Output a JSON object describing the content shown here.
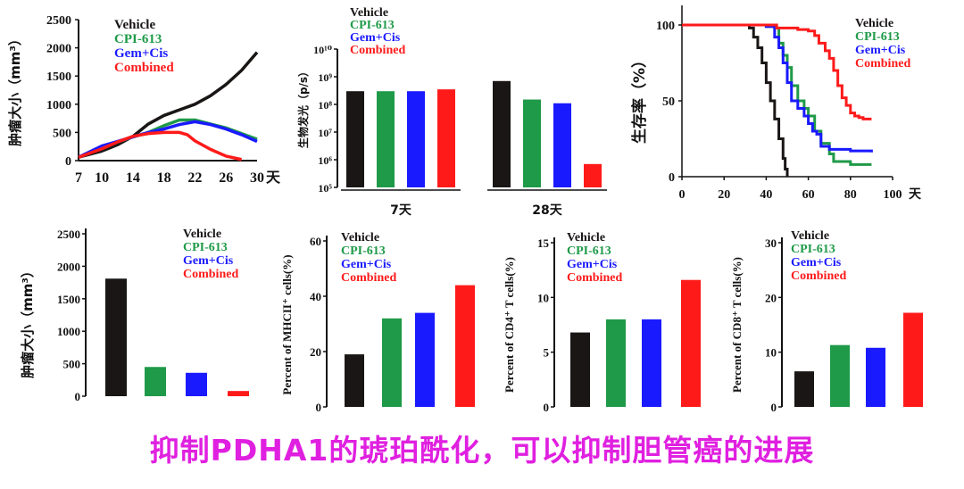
{
  "caption": "抑制PDHA1的琥珀酰化，可以抑制胆管癌的进展",
  "colors": {
    "Vehicle": "#1a1616",
    "CPI-613": "#1f9a48",
    "Gem+Cis": "#1a1aff",
    "Combined": "#ff1a1a"
  },
  "chart_data": [
    {
      "type": "line",
      "ylabel": "肿瘤大小（mm³）",
      "x_unit": "天",
      "xticks": [
        "7",
        "10",
        "14",
        "18",
        "22",
        "26",
        "30"
      ],
      "yticks": [
        "0",
        "500",
        "1000",
        "1500",
        "2000",
        "2500"
      ],
      "ylim": [
        0,
        2500
      ],
      "legend": [
        "Vehicle",
        "CPI-613",
        "Gem+Cis",
        "Combined"
      ],
      "series": [
        {
          "name": "Vehicle",
          "x": [
            7,
            10,
            12,
            14,
            16,
            18,
            20,
            22,
            24,
            26,
            28,
            30
          ],
          "y": [
            60,
            170,
            280,
            430,
            650,
            800,
            900,
            1000,
            1150,
            1350,
            1600,
            1920
          ]
        },
        {
          "name": "CPI-613",
          "x": [
            7,
            10,
            12,
            14,
            16,
            18,
            20,
            22,
            24,
            26,
            28,
            30
          ],
          "y": [
            60,
            230,
            330,
            420,
            500,
            620,
            720,
            720,
            650,
            580,
            480,
            380
          ]
        },
        {
          "name": "Gem+Cis",
          "x": [
            7,
            10,
            12,
            14,
            16,
            18,
            20,
            22,
            24,
            26,
            28,
            30
          ],
          "y": [
            60,
            260,
            340,
            420,
            500,
            560,
            640,
            690,
            640,
            560,
            460,
            340
          ]
        },
        {
          "name": "Combined",
          "x": [
            7,
            10,
            12,
            14,
            16,
            18,
            20,
            21,
            22,
            24,
            26,
            28
          ],
          "y": [
            60,
            210,
            330,
            430,
            480,
            500,
            500,
            460,
            350,
            200,
            80,
            20
          ]
        }
      ]
    },
    {
      "type": "bar",
      "ylabel": "生物发光（p/s）",
      "yscale": "log",
      "ylim": [
        100000,
        10000000000
      ],
      "yticks": [
        "10⁵",
        "10⁶",
        "10⁷",
        "10⁸",
        "10⁹",
        "10¹⁰"
      ],
      "groups": [
        "7天",
        "28天"
      ],
      "legend": [
        "Vehicle",
        "CPI-613",
        "Gem+Cis",
        "Combined"
      ],
      "series": [
        {
          "name": "Vehicle",
          "values": [
            300000000,
            700000000
          ]
        },
        {
          "name": "CPI-613",
          "values": [
            300000000,
            150000000
          ]
        },
        {
          "name": "Gem+Cis",
          "values": [
            300000000,
            110000000
          ]
        },
        {
          "name": "Combined",
          "values": [
            350000000,
            700000
          ]
        }
      ]
    },
    {
      "type": "line",
      "ylabel": "生存率（%）",
      "x_unit": "天",
      "xticks": [
        "0",
        "20",
        "40",
        "60",
        "80",
        "100"
      ],
      "yticks": [
        "0",
        "50",
        "100"
      ],
      "xlim": [
        0,
        100
      ],
      "ylim": [
        0,
        100
      ],
      "legend": [
        "Vehicle",
        "CPI-613",
        "Gem+Cis",
        "Combined"
      ],
      "series": [
        {
          "name": "Vehicle",
          "x": [
            0,
            25,
            32,
            34,
            36,
            38,
            40,
            42,
            44,
            46,
            48,
            49,
            50
          ],
          "y": [
            100,
            100,
            98,
            92,
            85,
            75,
            62,
            50,
            38,
            25,
            12,
            5,
            0
          ]
        },
        {
          "name": "CPI-613",
          "x": [
            0,
            25,
            40,
            44,
            46,
            48,
            50,
            52,
            55,
            58,
            60,
            63,
            66,
            70,
            72,
            80,
            90
          ],
          "y": [
            100,
            100,
            99,
            98,
            88,
            80,
            72,
            60,
            50,
            45,
            40,
            30,
            22,
            15,
            10,
            8,
            8
          ]
        },
        {
          "name": "Gem+Cis",
          "x": [
            0,
            25,
            40,
            44,
            46,
            48,
            50,
            52,
            55,
            58,
            60,
            62,
            64,
            66,
            70,
            80,
            90
          ],
          "y": [
            100,
            100,
            99,
            92,
            85,
            75,
            62,
            50,
            45,
            40,
            35,
            30,
            28,
            20,
            18,
            17,
            16
          ]
        },
        {
          "name": "Combined",
          "x": [
            0,
            25,
            45,
            55,
            60,
            63,
            65,
            68,
            70,
            72,
            74,
            76,
            78,
            80,
            82,
            84,
            86,
            90
          ],
          "y": [
            100,
            100,
            98,
            97,
            96,
            93,
            88,
            83,
            78,
            70,
            60,
            52,
            47,
            42,
            40,
            39,
            38,
            38
          ]
        }
      ]
    },
    {
      "type": "bar",
      "ylabel": "肿瘤大小（mm³）",
      "ylim": [
        0,
        2500
      ],
      "yticks": [
        "0",
        "500",
        "1000",
        "1500",
        "2000",
        "2500"
      ],
      "categories": [
        "Vehicle",
        "CPI-613",
        "Gem+Cis",
        "Combined"
      ],
      "values": [
        1810,
        450,
        360,
        80
      ],
      "legend": [
        "Vehicle",
        "CPI-613",
        "Gem+Cis",
        "Combined"
      ]
    },
    {
      "type": "bar",
      "ylabel": "Percent of MHCII⁺ cells(%)",
      "ylim": [
        0,
        60
      ],
      "yticks": [
        "0",
        "20",
        "40",
        "60"
      ],
      "categories": [
        "Vehicle",
        "CPI-613",
        "Gem+Cis",
        "Combined"
      ],
      "values": [
        19,
        32,
        34,
        44
      ],
      "legend": [
        "Vehicle",
        "CPI-613",
        "Gem+Cis",
        "Combined"
      ]
    },
    {
      "type": "bar",
      "ylabel": "Percent of CD4⁺ T cells(%)",
      "ylim": [
        0,
        15
      ],
      "yticks": [
        "0",
        "5",
        "10",
        "15"
      ],
      "categories": [
        "Vehicle",
        "CPI-613",
        "Gem+Cis",
        "Combined"
      ],
      "values": [
        6.8,
        8.0,
        8.0,
        11.6
      ],
      "legend": [
        "Vehicle",
        "CPI-613",
        "Gem+Cis",
        "Combined"
      ]
    },
    {
      "type": "bar",
      "ylabel": "Percent of CD8⁺ T cells(%)",
      "ylim": [
        0,
        30
      ],
      "yticks": [
        "0",
        "10",
        "20",
        "30"
      ],
      "categories": [
        "Vehicle",
        "CPI-613",
        "Gem+Cis",
        "Combined"
      ],
      "values": [
        6.5,
        11.3,
        10.8,
        17.2
      ],
      "legend": [
        "Vehicle",
        "CPI-613",
        "Gem+Cis",
        "Combined"
      ]
    }
  ]
}
